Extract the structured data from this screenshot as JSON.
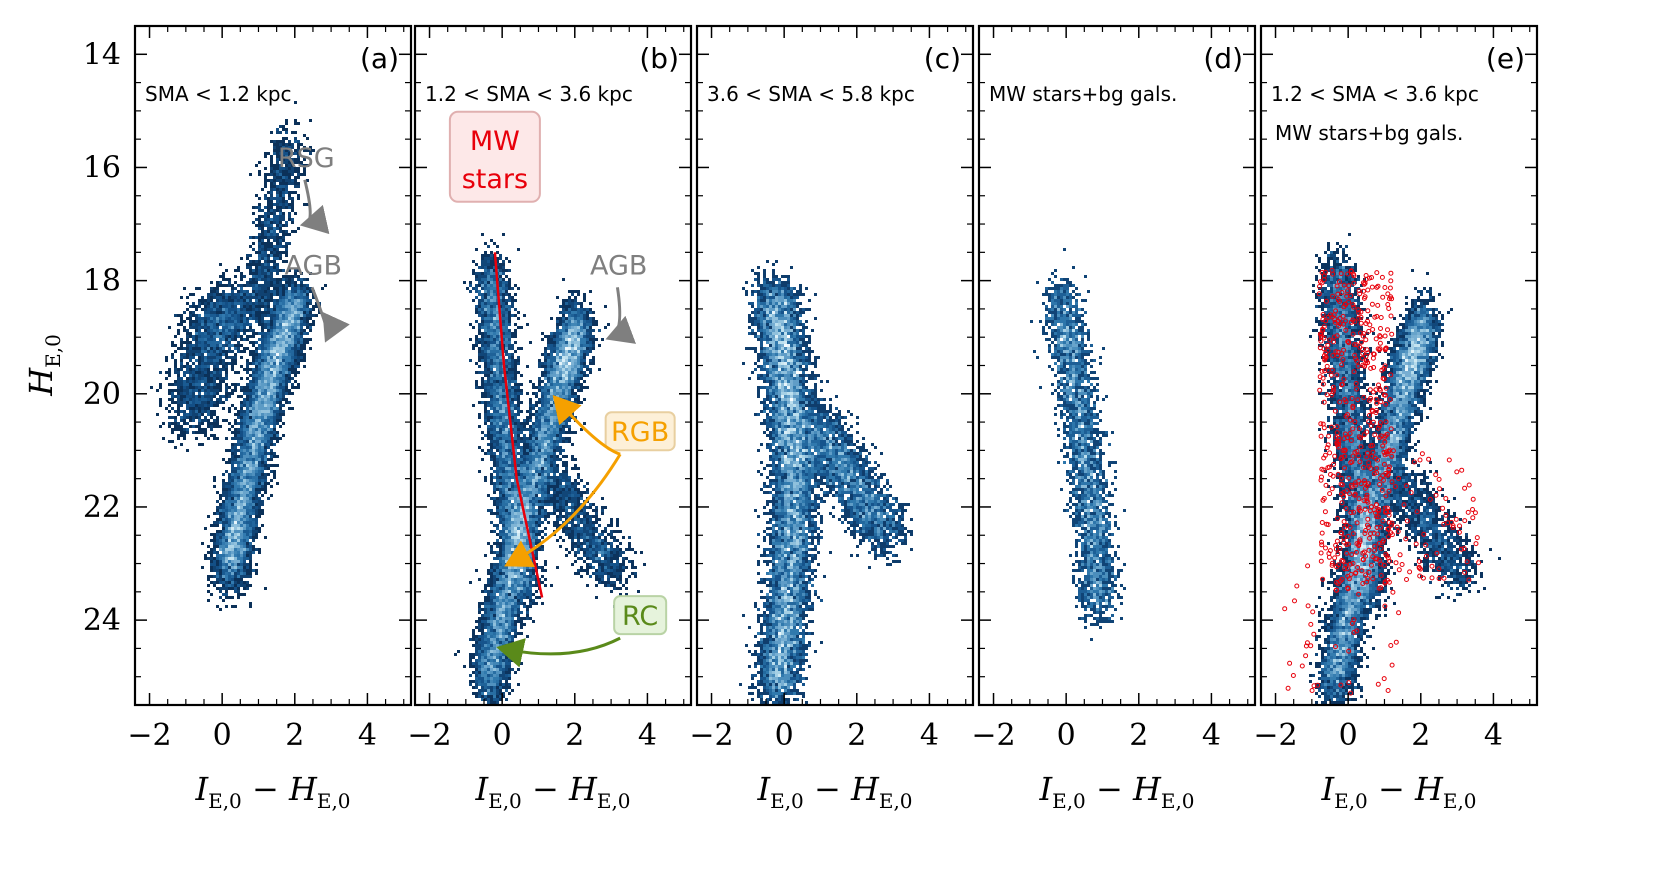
{
  "chart_data": {
    "type": "scatter",
    "description_kind": "color-magnitude density diagrams (2D histograms), five panels sharing y axis",
    "ylabel": "H_{E,0}",
    "xlabel": "I_{E,0} − H_{E,0}",
    "xlim": [
      -2.4,
      5.2
    ],
    "ylim": [
      25.5,
      13.5
    ],
    "xticks": [
      -2,
      0,
      2,
      4
    ],
    "xtick_labels": [
      "−2",
      "0",
      "2",
      "4"
    ],
    "yticks": [
      14,
      16,
      18,
      20,
      22,
      24
    ],
    "ytick_labels": [
      "14",
      "16",
      "18",
      "20",
      "22",
      "24"
    ],
    "colormap": [
      "#000a20",
      "#0b2f57",
      "#14528a",
      "#2f78ad",
      "#6fa9cf",
      "#bde0ee",
      "#f6fcff"
    ],
    "panels": [
      {
        "tag": "(a)",
        "condition": "SMA < 1.2 kpc",
        "sequences": [
          {
            "name": "main branch",
            "points": [
              [
                0.2,
                23.2
              ],
              [
                0.5,
                22.0
              ],
              [
                1.0,
                20.5
              ],
              [
                1.5,
                19.3
              ],
              [
                2.1,
                18.3
              ]
            ],
            "width": 0.55,
            "density": 1.0
          },
          {
            "name": "RSG plume",
            "points": [
              [
                1.0,
                18.5
              ],
              [
                1.4,
                17.0
              ],
              [
                1.9,
                15.5
              ]
            ],
            "width": 0.6,
            "density": 0.12
          },
          {
            "name": "blue cloud",
            "points": [
              [
                -0.8,
                20.5
              ],
              [
                -0.3,
                19.0
              ],
              [
                0.5,
                18.3
              ]
            ],
            "width": 1.0,
            "density": 0.25
          }
        ],
        "annotations": [
          {
            "text": "RSG",
            "color": "#7f7f7f",
            "text_at": [
              3.1,
              15.9
            ],
            "arrow_to": [
              2.3,
              17.0
            ]
          },
          {
            "text": "AGB",
            "color": "#7f7f7f",
            "text_at": [
              3.3,
              17.8
            ],
            "arrow_to": [
              2.9,
              19.0
            ]
          }
        ]
      },
      {
        "tag": "(b)",
        "condition": "1.2 < SMA < 3.6 kpc",
        "sequences": [
          {
            "name": "RGB",
            "points": [
              [
                -0.4,
                25.2
              ],
              [
                0.1,
                23.5
              ],
              [
                0.9,
                21.5
              ],
              [
                1.6,
                19.8
              ],
              [
                2.1,
                18.7
              ]
            ],
            "width": 0.55,
            "density": 1.0
          },
          {
            "name": "MW plume",
            "points": [
              [
                -0.3,
                17.8
              ],
              [
                -0.1,
                19.5
              ],
              [
                0.2,
                21.5
              ],
              [
                0.6,
                23.5
              ]
            ],
            "width": 0.55,
            "density": 0.55
          },
          {
            "name": "red wing",
            "points": [
              [
                1.5,
                21.5
              ],
              [
                2.3,
                22.5
              ],
              [
                3.2,
                23.2
              ]
            ],
            "width": 0.7,
            "density": 0.12
          }
        ],
        "mw_track": [
          [
            -0.2,
            17.5
          ],
          [
            0.05,
            19.5
          ],
          [
            0.4,
            21.5
          ],
          [
            1.1,
            23.6
          ]
        ],
        "annotations": [
          {
            "text": "MW",
            "text2": "stars",
            "color": "#e8000b",
            "text_at": [
              -0.2,
              15.9
            ],
            "box": true
          },
          {
            "text": "AGB",
            "color": "#7f7f7f",
            "text_at": [
              4.0,
              17.8
            ],
            "arrow_to": [
              3.0,
              19.0
            ]
          },
          {
            "text": "RGB",
            "color": "#f5a000",
            "text_at": [
              3.8,
              20.75
            ],
            "arrow_to": [
              1.5,
              20.1
            ],
            "arrow2_to": [
              0.2,
              23.0
            ],
            "box": true
          },
          {
            "text": "RC",
            "color": "#5a8a1a",
            "text_at": [
              3.8,
              24.0
            ],
            "arrow_to": [
              0.0,
              24.5
            ],
            "box": true
          }
        ]
      },
      {
        "tag": "(c)",
        "condition": "3.6 < SMA < 5.8 kpc",
        "sequences": [
          {
            "name": "main branch",
            "points": [
              [
                -0.2,
                25.3
              ],
              [
                0.1,
                23.5
              ],
              [
                0.3,
                21.5
              ],
              [
                0.1,
                19.8
              ],
              [
                -0.3,
                18.2
              ]
            ],
            "width": 0.7,
            "density": 1.0
          },
          {
            "name": "red wing",
            "points": [
              [
                0.8,
                20.5
              ],
              [
                1.8,
                21.5
              ],
              [
                2.8,
                22.5
              ]
            ],
            "width": 0.8,
            "density": 0.25
          }
        ]
      },
      {
        "tag": "(d)",
        "condition": "MW stars+bg gals.",
        "sequences": [
          {
            "name": "MW plume",
            "points": [
              [
                -0.2,
                18.2
              ],
              [
                0.3,
                20.0
              ],
              [
                0.7,
                22.0
              ],
              [
                0.9,
                23.8
              ]
            ],
            "width": 0.6,
            "density": 0.35
          }
        ]
      },
      {
        "tag": "(e)",
        "condition": "1.2 < SMA < 3.6 kpc",
        "condition2": "MW stars+bg gals.",
        "condition2_color": "#e8000b",
        "sequences": [
          {
            "name": "RGB",
            "points": [
              [
                -0.4,
                25.2
              ],
              [
                0.1,
                23.5
              ],
              [
                0.9,
                21.5
              ],
              [
                1.6,
                19.8
              ],
              [
                2.1,
                18.7
              ]
            ],
            "width": 0.55,
            "density": 1.0
          },
          {
            "name": "MW plume",
            "points": [
              [
                -0.3,
                17.8
              ],
              [
                -0.1,
                19.5
              ],
              [
                0.2,
                21.5
              ],
              [
                0.6,
                23.5
              ]
            ],
            "width": 0.55,
            "density": 0.55
          },
          {
            "name": "red wing",
            "points": [
              [
                1.5,
                21.5
              ],
              [
                2.3,
                22.5
              ],
              [
                3.2,
                23.2
              ]
            ],
            "width": 0.7,
            "density": 0.12
          }
        ],
        "overlay_red_points": [
          {
            "x_range": [
              -0.8,
              1.2
            ],
            "y_range": [
              17.8,
              23.5
            ],
            "count": 520
          },
          {
            "x_range": [
              0.5,
              3.6
            ],
            "y_range": [
              21.0,
              23.3
            ],
            "count": 90
          },
          {
            "x_range": [
              -2.0,
              1.5
            ],
            "y_range": [
              23.0,
              25.3
            ],
            "count": 40
          }
        ]
      }
    ]
  },
  "colors": {
    "axis": "#000000",
    "mw_stars": "#e8000b",
    "gray_annot": "#7f7f7f",
    "rgb": "#f5a000",
    "rc": "#5a8a1a"
  }
}
